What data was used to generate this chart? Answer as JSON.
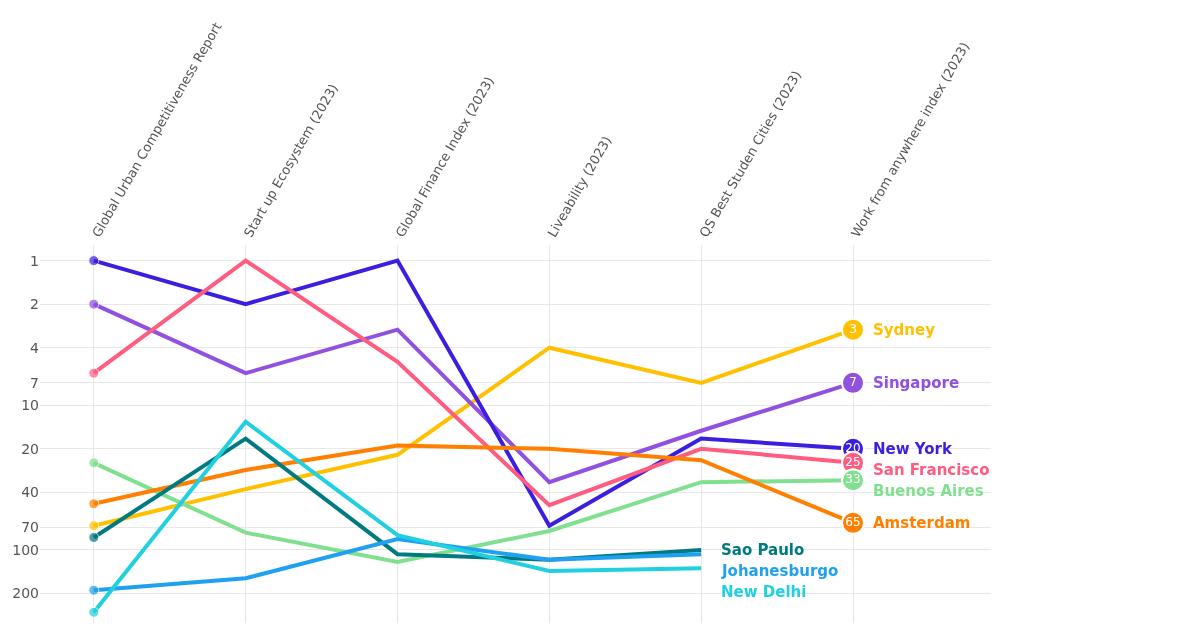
{
  "chart_data": {
    "type": "line",
    "categories": [
      "Global Urban Competitiveness Report",
      "Start up Ecosystem (2023)",
      "Global Finance Index (2023)",
      "Liveability (2023)",
      "QS Best Studen Cities (2023)",
      "Work from anywhere index (2023)"
    ],
    "series": [
      {
        "name": "Sydney",
        "color": "#ffc000",
        "values": [
          68,
          38,
          22,
          4,
          7,
          3
        ],
        "value_labels": [
          null,
          null,
          null,
          null,
          null,
          "3"
        ]
      },
      {
        "name": "Singapore",
        "color": "#9050e0",
        "values": [
          2,
          6,
          3,
          34,
          15,
          7
        ],
        "value_labels": [
          null,
          null,
          null,
          null,
          null,
          "7"
        ]
      },
      {
        "name": "New York",
        "color": "#3a1fe0",
        "values": [
          1,
          2,
          1,
          68,
          17,
          20
        ],
        "value_labels": [
          null,
          null,
          null,
          null,
          null,
          "20"
        ]
      },
      {
        "name": "San Francisco",
        "color": "#ff5c80",
        "values": [
          6,
          1,
          5,
          49,
          20,
          25
        ],
        "value_labels": [
          null,
          null,
          null,
          null,
          null,
          "25"
        ]
      },
      {
        "name": "Buenos Aires",
        "color": "#80e090",
        "values": [
          25,
          76,
          121,
          74,
          34,
          33
        ],
        "value_labels": [
          null,
          null,
          null,
          null,
          null,
          "33"
        ]
      },
      {
        "name": "Amsterdam",
        "color": "#ff8000",
        "values": [
          48,
          28,
          19,
          20,
          24,
          65
        ],
        "value_labels": [
          null,
          null,
          null,
          null,
          null,
          "65"
        ]
      },
      {
        "name": "Sao Paulo",
        "color": "#007a80",
        "values": [
          82,
          17,
          107,
          117,
          100,
          null
        ]
      },
      {
        "name": "Johanesburgo",
        "color": "#20a0f0",
        "values": [
          190,
          157,
          84,
          117,
          107,
          null
        ]
      },
      {
        "name": "New Delhi",
        "color": "#20d0e0",
        "values": [
          270,
          13,
          79,
          140,
          134,
          null
        ]
      }
    ],
    "log": "y",
    "ylim": [
      320,
      0.78
    ],
    "yticks": [
      1,
      2,
      4,
      7,
      10,
      20,
      40,
      70,
      100,
      200
    ],
    "grid": true,
    "line_style": "solid",
    "legend": false
  }
}
